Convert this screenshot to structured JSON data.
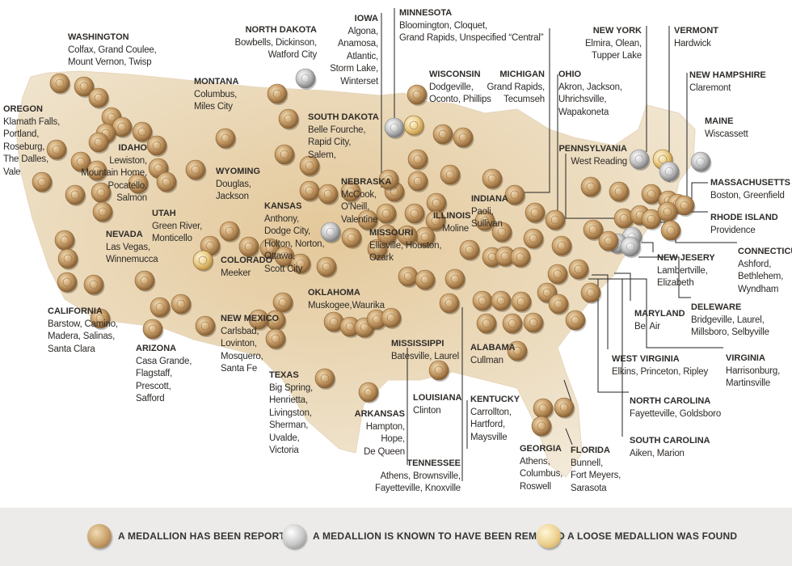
{
  "states": [
    {
      "key": "washington",
      "state": "WASHINGTON",
      "cities": [
        "Colfax, Grand Coulee,",
        "Mount Vernon, Twisp"
      ]
    },
    {
      "key": "oregon",
      "state": "OREGON",
      "cities": [
        "Klamath Falls,",
        "Portland,",
        "Roseburg,",
        "The Dalles,",
        "Vale"
      ]
    },
    {
      "key": "idaho",
      "state": "IDAHO",
      "cities": [
        "Lewiston,",
        "Mountain Home,",
        "Pocatello,",
        "Salmon"
      ]
    },
    {
      "key": "montana",
      "state": "MONTANA",
      "cities": [
        "Columbus,",
        "Miles City"
      ]
    },
    {
      "key": "north-dakota",
      "state": "NORTH DAKOTA",
      "cities": [
        "Bowbells, Dickinson,",
        "Watford City"
      ]
    },
    {
      "key": "south-dakota",
      "state": "SOUTH DAKOTA",
      "cities": [
        "Belle Fourche,",
        "Rapid City,",
        "Salem,"
      ]
    },
    {
      "key": "wyoming",
      "state": "WYOMING",
      "cities": [
        "Douglas,",
        "Jackson"
      ]
    },
    {
      "key": "nevada",
      "state": "NEVADA",
      "cities": [
        "Las Vegas,",
        "Winnemucca"
      ]
    },
    {
      "key": "utah",
      "state": "UTAH",
      "cities": [
        "Green River,",
        "Monticello"
      ]
    },
    {
      "key": "colorado",
      "state": "COLORADO",
      "cities": [
        "Meeker"
      ]
    },
    {
      "key": "california",
      "state": "CALIFORNIA",
      "cities": [
        "Barstow, Camino,",
        "Madera, Salinas,",
        "Santa Clara"
      ]
    },
    {
      "key": "arizona",
      "state": "ARIZONA",
      "cities": [
        "Casa Grande,",
        "Flagstaff,",
        "Prescott,",
        "Safford"
      ]
    },
    {
      "key": "new-mexico",
      "state": "NEW MEXICO",
      "cities": [
        "Carlsbad,",
        "Lovinton,",
        "Mosquero,",
        "Santa Fe"
      ]
    },
    {
      "key": "kansas",
      "state": "KANSAS",
      "cities": [
        "Anthony,",
        "Dodge City,",
        "Holton, Norton,",
        "Ottawa,",
        "Scott City"
      ]
    },
    {
      "key": "nebraska",
      "state": "NEBRASKA",
      "cities": [
        "McCook,",
        "O'Neill,",
        "Valentine"
      ]
    },
    {
      "key": "oklahoma",
      "state": "OKLAHOMA",
      "cities": [
        "Muskogee,Waurika"
      ]
    },
    {
      "key": "texas",
      "state": "TEXAS",
      "cities": [
        "Big Spring,",
        "Henrietta,",
        "Livingston,",
        "Sherman,",
        "Uvalde,",
        "Victoria"
      ]
    },
    {
      "key": "iowa",
      "state": "IOWA",
      "cities": [
        "Algona,",
        "Anamosa,",
        "Atlantic,",
        "Storm Lake,",
        "Winterset"
      ]
    },
    {
      "key": "minnesota",
      "state": "MINNESOTA",
      "cities": [
        "Bloomington, Cloquet,",
        "Grand Rapids, Unspecified “Central”"
      ]
    },
    {
      "key": "wisconsin",
      "state": "WISCONSIN",
      "cities": [
        "Dodgeville,",
        "Oconto, Phillips"
      ]
    },
    {
      "key": "michigan",
      "state": "MICHIGAN",
      "cities": [
        "Grand Rapids,",
        "Tecumseh"
      ]
    },
    {
      "key": "ohio",
      "state": "OHIO",
      "cities": [
        "Akron, Jackson,",
        "Uhrichsville,",
        "Wapakoneta"
      ]
    },
    {
      "key": "missouri",
      "state": "MISSOURI",
      "cities": [
        "Ellisville, Houston,",
        "Ozark"
      ]
    },
    {
      "key": "illinois",
      "state": "ILLINOIS",
      "cities": [
        "Moline"
      ]
    },
    {
      "key": "indiana",
      "state": "INDIANA",
      "cities": [
        "Paoli,",
        "Sullivan"
      ]
    },
    {
      "key": "arkansas",
      "state": "ARKANSAS",
      "cities": [
        "Hampton,",
        "Hope,",
        "De Queen"
      ]
    },
    {
      "key": "louisiana",
      "state": "LOUISIANA",
      "cities": [
        "Clinton"
      ]
    },
    {
      "key": "mississippi",
      "state": "MISSISSIPPI",
      "cities": [
        "Batesville, Laurel"
      ]
    },
    {
      "key": "tennessee",
      "state": "TENNESSEE",
      "cities": [
        "Athens, Brownsville,",
        "Fayetteville, Knoxville"
      ]
    },
    {
      "key": "alabama",
      "state": "ALABAMA",
      "cities": [
        "Cullman"
      ]
    },
    {
      "key": "kentucky",
      "state": "KENTUCKY",
      "cities": [
        "Carrollton,",
        "Hartford,",
        "Maysville"
      ]
    },
    {
      "key": "georgia",
      "state": "GEORGIA",
      "cities": [
        "Athens,",
        "Columbus,",
        "Roswell"
      ]
    },
    {
      "key": "florida",
      "state": "FLORIDA",
      "cities": [
        "Bunnell,",
        "Fort Meyers,",
        "Sarasota"
      ]
    },
    {
      "key": "south-carolina",
      "state": "SOUTH CAROLINA",
      "cities": [
        "Aiken, Marion"
      ]
    },
    {
      "key": "north-carolina",
      "state": "NORTH CAROLINA",
      "cities": [
        "Fayetteville, Goldsboro"
      ]
    },
    {
      "key": "west-virginia",
      "state": "WEST VIRGINIA",
      "cities": [
        "Elkins, Princeton, Ripley"
      ]
    },
    {
      "key": "virginia",
      "state": "VIRGINIA",
      "cities": [
        "Harrisonburg,",
        "Martinsville"
      ]
    },
    {
      "key": "maryland",
      "state": "MARYLAND",
      "cities": [
        "Bel Air"
      ]
    },
    {
      "key": "delaware",
      "state": "DELEWARE",
      "cities": [
        "Bridgeville, Laurel,",
        "Millsboro, Selbyville"
      ]
    },
    {
      "key": "new-jersey",
      "state": "NEW JESERY",
      "cities": [
        "Lambertville,",
        "Elizabeth"
      ]
    },
    {
      "key": "pennsylvania",
      "state": "PENNSYLVANIA",
      "cities": [
        "West Reading"
      ]
    },
    {
      "key": "new-york",
      "state": "NEW YORK",
      "cities": [
        "Elmira, Olean,",
        "Tupper Lake"
      ]
    },
    {
      "key": "vermont",
      "state": "VERMONT",
      "cities": [
        "Hardwick"
      ]
    },
    {
      "key": "new-hampshire",
      "state": "NEW HAMPSHIRE",
      "cities": [
        "Claremont"
      ]
    },
    {
      "key": "maine",
      "state": "MAINE",
      "cities": [
        "Wiscassett"
      ]
    },
    {
      "key": "massachusetts",
      "state": "MASSACHUSETTS",
      "cities": [
        "Boston, Greenfield"
      ]
    },
    {
      "key": "rhode-island",
      "state": "RHODE ISLAND",
      "cities": [
        "Providence"
      ]
    },
    {
      "key": "connecticut",
      "state": "CONNECTICUT",
      "cities": [
        "Ashford,",
        "Bethlehem,",
        "Wyndham"
      ]
    }
  ],
  "legend": {
    "reported": "A MEDALLION HAS BEEN REPORTED",
    "removed": "A MEDALLION IS KNOWN TO HAVE BEEN REMOVED",
    "loose": "A LOOSE MEDALLION WAS FOUND"
  },
  "colors": {
    "land": "#efe1c6",
    "land_dark": "#e3cba1",
    "reported": "#c79d68",
    "removed": "#b9b9b9",
    "loose": "#ecd08e",
    "leader_line": "#222222",
    "legend_bg": "#ecebea"
  }
}
